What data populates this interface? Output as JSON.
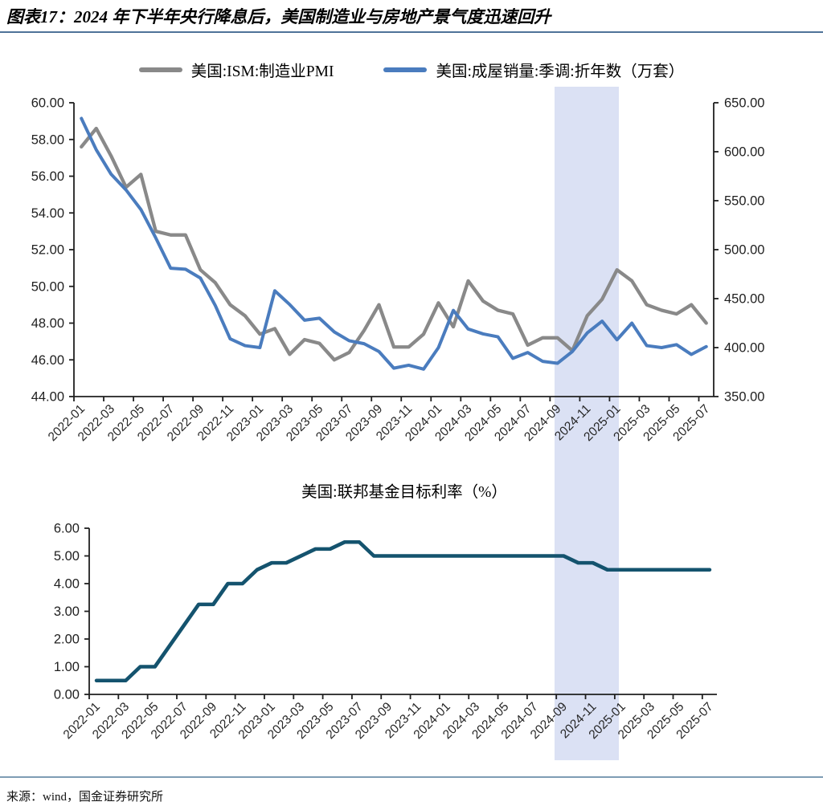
{
  "title": "图表17：2024 年下半年央行降息后，美国制造业与房地产景气度迅速回升",
  "source": "来源：wind，国金证券研究所",
  "colors": {
    "pmi_line": "#898989",
    "home_sales_line": "#4a7cbe",
    "rate_line": "#14536e",
    "highlight_band": "#dbe1f4",
    "axis": "#1f1f1f",
    "title_rule": "#4f7398",
    "footer_rule": "#7e9cb4"
  },
  "highlight_band": {
    "from": "2024-10",
    "to": "2025-01"
  },
  "chart_data": [
    {
      "type": "line",
      "title": "",
      "x": [
        "2022-01",
        "2022-02",
        "2022-03",
        "2022-04",
        "2022-05",
        "2022-06",
        "2022-07",
        "2022-08",
        "2022-09",
        "2022-10",
        "2022-11",
        "2022-12",
        "2023-01",
        "2023-02",
        "2023-03",
        "2023-04",
        "2023-05",
        "2023-06",
        "2023-07",
        "2023-08",
        "2023-09",
        "2023-10",
        "2023-11",
        "2023-12",
        "2024-01",
        "2024-02",
        "2024-03",
        "2024-04",
        "2024-05",
        "2024-06",
        "2024-07",
        "2024-08",
        "2024-09",
        "2024-10",
        "2024-11",
        "2024-12",
        "2025-01",
        "2025-02",
        "2025-03",
        "2025-04",
        "2025-05",
        "2025-06",
        "2025-07"
      ],
      "x_tick_labels": [
        "2022-01",
        "2022-03",
        "2022-05",
        "2022-07",
        "2022-09",
        "2022-11",
        "2023-01",
        "2023-03",
        "2023-05",
        "2023-07",
        "2023-09",
        "2023-11",
        "2024-01",
        "2024-03",
        "2024-05",
        "2024-07",
        "2024-09",
        "2024-11",
        "2025-01",
        "2025-03",
        "2025-05",
        "2025-07"
      ],
      "series": [
        {
          "name": "美国:ISM:制造业PMI",
          "axis": "left",
          "color": "#898989",
          "values": [
            57.6,
            58.6,
            57.1,
            55.4,
            56.1,
            53.0,
            52.8,
            52.8,
            50.9,
            50.2,
            49.0,
            48.4,
            47.4,
            47.7,
            46.3,
            47.1,
            46.9,
            46.0,
            46.4,
            47.6,
            49.0,
            46.7,
            46.7,
            47.4,
            49.1,
            47.8,
            50.3,
            49.2,
            48.7,
            48.5,
            46.8,
            47.2,
            47.2,
            46.5,
            48.4,
            49.3,
            50.9,
            50.3,
            49.0,
            48.7,
            48.5,
            49.0,
            48.0
          ]
        },
        {
          "name": "美国:成屋销量:季调:折年数（万套）",
          "axis": "right",
          "color": "#4a7cbe",
          "values": [
            634,
            602,
            577,
            561,
            541,
            512,
            481,
            480,
            471,
            443,
            409,
            402,
            400,
            458,
            444,
            428,
            430,
            416,
            407,
            404,
            396,
            379,
            382,
            378,
            400,
            438,
            419,
            414,
            411,
            389,
            395,
            386,
            384,
            396,
            415,
            427,
            408,
            425,
            402,
            400,
            403,
            393,
            401
          ]
        }
      ],
      "left_axis": {
        "min": 44,
        "max": 60,
        "step": 2,
        "ticks": [
          "60.00",
          "58.00",
          "56.00",
          "54.00",
          "52.00",
          "50.00",
          "48.00",
          "46.00",
          "44.00"
        ]
      },
      "right_axis": {
        "min": 350,
        "max": 650,
        "step": 50,
        "ticks": [
          "650.00",
          "600.00",
          "550.00",
          "500.00",
          "450.00",
          "400.00",
          "350.00"
        ]
      },
      "legend_position": "top",
      "grid": false
    },
    {
      "type": "line",
      "title": "美国:联邦基金目标利率（%）",
      "x": [
        "2022-01",
        "2022-02",
        "2022-03",
        "2022-04",
        "2022-05",
        "2022-06",
        "2022-07",
        "2022-08",
        "2022-09",
        "2022-10",
        "2022-11",
        "2022-12",
        "2023-01",
        "2023-02",
        "2023-03",
        "2023-04",
        "2023-05",
        "2023-06",
        "2023-07",
        "2023-08",
        "2023-09",
        "2023-10",
        "2023-11",
        "2023-12",
        "2024-01",
        "2024-02",
        "2024-03",
        "2024-04",
        "2024-05",
        "2024-06",
        "2024-07",
        "2024-08",
        "2024-09",
        "2024-10",
        "2024-11",
        "2024-12",
        "2025-01",
        "2025-02",
        "2025-03",
        "2025-04",
        "2025-05",
        "2025-06",
        "2025-07"
      ],
      "x_tick_labels": [
        "2022-01",
        "2022-03",
        "2022-05",
        "2022-07",
        "2022-09",
        "2022-11",
        "2023-01",
        "2023-03",
        "2023-05",
        "2023-07",
        "2023-09",
        "2023-11",
        "2024-01",
        "2024-03",
        "2024-05",
        "2024-07",
        "2024-09",
        "2024-11",
        "2025-01",
        "2025-03",
        "2025-05",
        "2025-07"
      ],
      "series": [
        {
          "name": "美国:联邦基金目标利率",
          "color": "#14536e",
          "values": [
            0.5,
            0.5,
            0.5,
            1.0,
            1.0,
            1.75,
            2.5,
            3.25,
            3.25,
            4.0,
            4.0,
            4.5,
            4.75,
            4.75,
            5.0,
            5.25,
            5.25,
            5.5,
            5.5,
            5.0,
            5.0,
            5.0,
            5.0,
            5.0,
            5.0,
            5.0,
            5.0,
            5.0,
            5.0,
            5.0,
            5.0,
            5.0,
            5.0,
            4.75,
            4.75,
            4.5,
            4.5,
            4.5,
            4.5,
            4.5,
            4.5,
            4.5,
            4.5
          ]
        }
      ],
      "y_axis": {
        "min": 0,
        "max": 6,
        "step": 1,
        "ticks": [
          "6.00",
          "5.00",
          "4.00",
          "3.00",
          "2.00",
          "1.00",
          "0.00"
        ]
      },
      "grid": false
    }
  ]
}
